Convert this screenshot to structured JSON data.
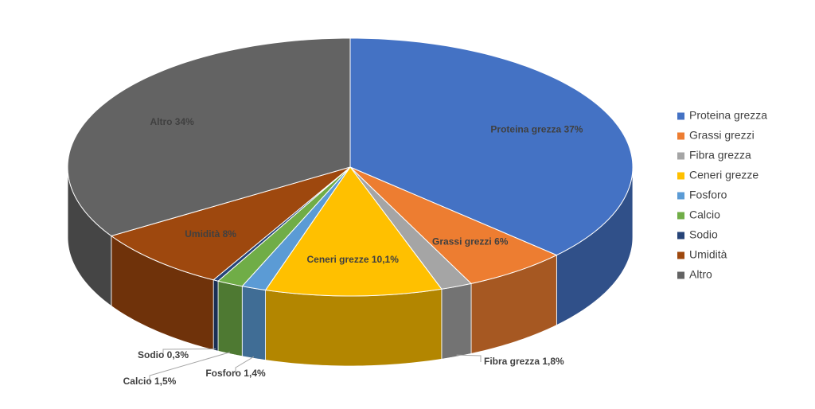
{
  "chart_data": {
    "type": "pie3d",
    "categories": [
      "Proteina grezza",
      "Grassi grezzi",
      "Fibra grezza",
      "Ceneri grezze",
      "Fosforo",
      "Calcio",
      "Sodio",
      "Umidità",
      "Altro"
    ],
    "values": [
      37,
      6,
      1.8,
      10.1,
      1.4,
      1.5,
      0.3,
      8,
      34
    ],
    "value_labels": [
      "Proteina grezza 37%",
      "Grassi grezzi 6%",
      "Fibra grezza 1,8%",
      "Ceneri grezze 10,1%",
      "Fosforo 1,4%",
      "Calcio 1,5%",
      "Sodio 0,3%",
      "Umidità 8%",
      "Altro 34%"
    ],
    "colors": [
      "#4472c4",
      "#ed7d31",
      "#a5a5a5",
      "#ffc000",
      "#5b9bd5",
      "#70ad47",
      "#264478",
      "#9e480e",
      "#636363"
    ],
    "legend": "right"
  }
}
